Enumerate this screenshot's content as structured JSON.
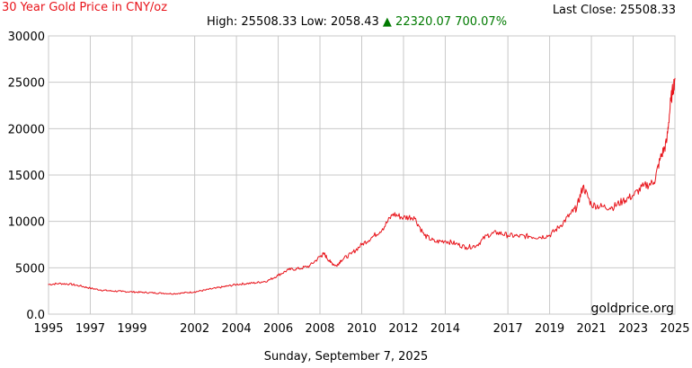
{
  "title": "30 Year Gold Price in CNY/oz",
  "last_close_label": "Last Close:",
  "last_close_value": "25508.33",
  "high_label": "High:",
  "high_value": "25508.33",
  "low_label": "Low:",
  "low_value": "2058.43",
  "change_arrow": "▲",
  "change_value": "22320.07",
  "change_pct": "700.07%",
  "watermark": "goldprice.org",
  "footer_date": "Sunday, September 7, 2025",
  "colors": {
    "line": "#e8141b",
    "title": "#e8141b",
    "change": "#007a00",
    "grid": "#c8c8c8"
  },
  "chart_data": {
    "type": "line",
    "title": "30 Year Gold Price in CNY/oz",
    "xlim": [
      1995.0,
      2025.0
    ],
    "ylim": [
      0,
      30000
    ],
    "grid": true,
    "x_ticks": [
      1995,
      1997,
      1999,
      2002,
      2004,
      2006,
      2008,
      2010,
      2012,
      2014,
      2017,
      2019,
      2021,
      2023,
      2025
    ],
    "x_tick_labels": [
      "1995",
      "1997",
      "1999",
      "2002",
      "2004",
      "2006",
      "2008",
      "2010",
      "2012",
      "2014",
      "2017",
      "2019",
      "2021",
      "2023",
      "2025"
    ],
    "y_ticks": [
      0,
      5000,
      10000,
      15000,
      20000,
      25000,
      30000
    ],
    "y_tick_labels": [
      "0.0",
      "5000",
      "10000",
      "15000",
      "20000",
      "25000",
      "30000"
    ],
    "series": [
      {
        "x": [
          1995.0,
          1995.5,
          1996.0,
          1996.5,
          1997.0,
          1997.5,
          1998.0,
          1998.5,
          1999.0,
          1999.5,
          2000.0,
          2000.5,
          2001.0,
          2001.5,
          2002.0,
          2002.5,
          2003.0,
          2003.5,
          2004.0,
          2004.5,
          2005.0,
          2005.5,
          2006.0,
          2006.5,
          2007.0,
          2007.5,
          2008.0,
          2008.2,
          2008.5,
          2008.8,
          2009.0,
          2009.5,
          2010.0,
          2010.5,
          2011.0,
          2011.5,
          2012.0,
          2012.5,
          2013.0,
          2013.5,
          2014.0,
          2014.5,
          2015.0,
          2015.5,
          2016.0,
          2016.5,
          2017.0,
          2017.5,
          2018.0,
          2018.5,
          2019.0,
          2019.5,
          2020.0,
          2020.3,
          2020.6,
          2021.0,
          2021.5,
          2022.0,
          2022.5,
          2023.0,
          2023.5,
          2024.0,
          2024.3,
          2024.6,
          2024.8,
          2025.0
        ],
        "values": [
          3200,
          3300,
          3250,
          3050,
          2800,
          2600,
          2500,
          2450,
          2400,
          2350,
          2300,
          2250,
          2200,
          2300,
          2400,
          2600,
          2800,
          3000,
          3200,
          3300,
          3400,
          3600,
          4200,
          4800,
          4900,
          5200,
          6200,
          6500,
          5600,
          5200,
          5800,
          6500,
          7500,
          8300,
          9200,
          10800,
          10400,
          10500,
          8500,
          7800,
          7900,
          7600,
          7200,
          7400,
          8500,
          8800,
          8500,
          8400,
          8400,
          8300,
          8500,
          9500,
          10800,
          11500,
          13800,
          11800,
          11600,
          11500,
          12200,
          12800,
          13800,
          14200,
          16800,
          18500,
          23000,
          25400
        ]
      }
    ]
  }
}
